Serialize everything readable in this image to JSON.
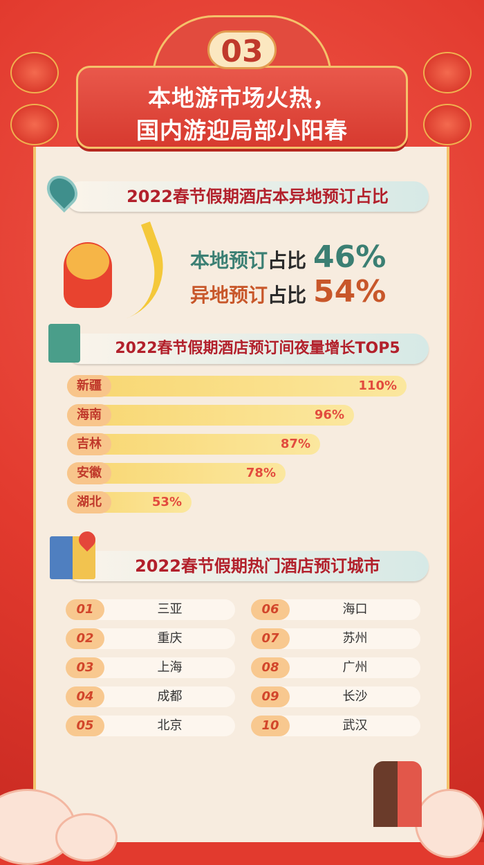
{
  "header": {
    "number": "03",
    "title_line1": "本地游市场火热，",
    "title_line2": "国内游迎局部小阳春"
  },
  "section1": {
    "title": "2022春节假期酒店本异地预订占比",
    "local_label_a": "本地预订",
    "local_label_b": "占比",
    "local_value": "46%",
    "remote_label_a": "异地预订",
    "remote_label_b": "占比",
    "remote_value": "54%"
  },
  "section2": {
    "title": "2022春节假期酒店预订间夜量增长TOP5"
  },
  "chart_data": {
    "type": "bar",
    "orientation": "horizontal",
    "title": "2022春节假期酒店预订间夜量增长TOP5",
    "categories": [
      "新疆",
      "海南",
      "吉林",
      "安徽",
      "湖北"
    ],
    "values": [
      110,
      96,
      87,
      78,
      53
    ],
    "value_labels": [
      "110%",
      "96%",
      "87%",
      "78%",
      "53%"
    ],
    "unit": "%"
  },
  "section3": {
    "title": "2022春节假期热门酒店预订城市",
    "cities": [
      {
        "rank": "01",
        "name": "三亚"
      },
      {
        "rank": "02",
        "name": "重庆"
      },
      {
        "rank": "03",
        "name": "上海"
      },
      {
        "rank": "04",
        "name": "成都"
      },
      {
        "rank": "05",
        "name": "北京"
      },
      {
        "rank": "06",
        "name": "海口"
      },
      {
        "rank": "07",
        "name": "苏州"
      },
      {
        "rank": "08",
        "name": "广州"
      },
      {
        "rank": "09",
        "name": "长沙"
      },
      {
        "rank": "10",
        "name": "武汉"
      }
    ]
  },
  "colors": {
    "background": "#e23a2e",
    "panel": "#f7ecdf",
    "heading": "#b2202b",
    "local": "#3b7f73",
    "remote": "#c8572a",
    "bar": "#f8d670",
    "bar_value": "#e24b3e"
  }
}
